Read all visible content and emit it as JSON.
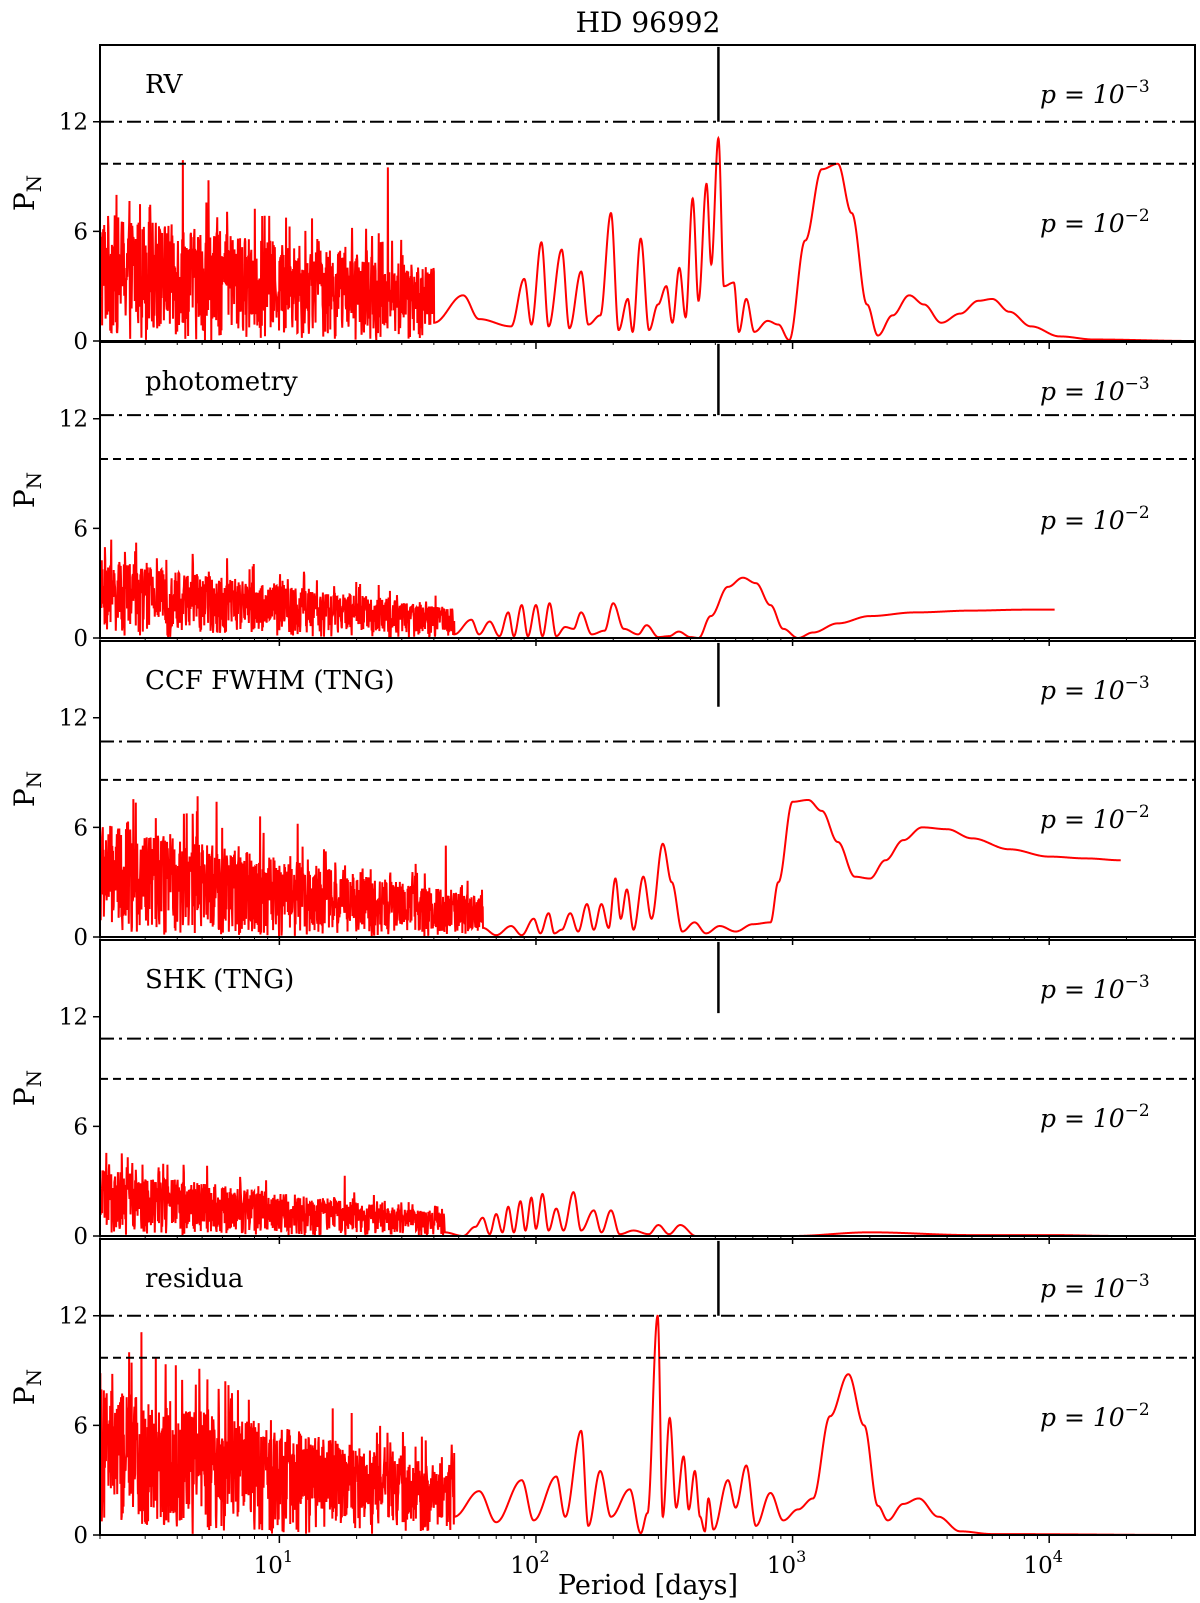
{
  "chart_data": {
    "type": "line",
    "title": "HD 96992",
    "xlabel": "Period [days]",
    "ylabel": "P",
    "ylabel_sub": "N",
    "xscale": "log",
    "xlim": [
      2.0,
      37000
    ],
    "ylim": [
      0,
      16.2
    ],
    "yticks": [
      0,
      6,
      12
    ],
    "xticks": [
      {
        "value": 10,
        "base": "10",
        "exp": "1"
      },
      {
        "value": 100,
        "base": "10",
        "exp": "2"
      },
      {
        "value": 1000,
        "base": "10",
        "exp": "3"
      },
      {
        "value": 10000,
        "base": "10",
        "exp": "4"
      }
    ],
    "significance_labels": {
      "p3": "p = 10",
      "p3_exp": "−3",
      "p2": "p = 10",
      "p2_exp": "−2"
    },
    "line_color": "#ff0000",
    "marker_period": 514,
    "panels": [
      {
        "label": "RV",
        "fap_001": 9.7,
        "fap_0001": 12.0,
        "marker_range": [
          12.0,
          16.1
        ],
        "noise": {
          "to": 40,
          "env_start": 5.2,
          "env_end": 3.0,
          "spikes": [
            [
              4.2,
              9.9
            ],
            [
              5.3,
              8.8
            ],
            [
              26.5,
              9.5
            ]
          ]
        },
        "curve": [
          [
            40,
            1.0
          ],
          [
            52,
            2.5
          ],
          [
            60,
            1.2
          ],
          [
            80,
            0.8
          ],
          [
            90,
            3.4
          ],
          [
            96,
            0.9
          ],
          [
            105,
            5.4
          ],
          [
            112,
            0.8
          ],
          [
            126,
            5.0
          ],
          [
            135,
            0.7
          ],
          [
            150,
            3.8
          ],
          [
            160,
            0.9
          ],
          [
            178,
            1.4
          ],
          [
            196,
            7.0
          ],
          [
            210,
            0.6
          ],
          [
            228,
            2.3
          ],
          [
            238,
            0.5
          ],
          [
            256,
            5.6
          ],
          [
            276,
            0.6
          ],
          [
            299,
            2.0
          ],
          [
            322,
            3.0
          ],
          [
            340,
            1.0
          ],
          [
            362,
            4.0
          ],
          [
            383,
            1.3
          ],
          [
            408,
            7.8
          ],
          [
            430,
            2.2
          ],
          [
            462,
            8.6
          ],
          [
            482,
            4.2
          ],
          [
            514,
            11.1
          ],
          [
            540,
            3.0
          ],
          [
            590,
            3.2
          ],
          [
            618,
            0.5
          ],
          [
            660,
            2.3
          ],
          [
            710,
            0.5
          ],
          [
            800,
            1.1
          ],
          [
            880,
            0.9
          ],
          [
            970,
            0.05
          ],
          [
            1120,
            5.5
          ],
          [
            1300,
            9.4
          ],
          [
            1500,
            9.7
          ],
          [
            1700,
            7.0
          ],
          [
            1950,
            2.0
          ],
          [
            2150,
            0.3
          ],
          [
            2450,
            1.4
          ],
          [
            2850,
            2.5
          ],
          [
            3250,
            2.0
          ],
          [
            3800,
            1.0
          ],
          [
            4500,
            1.5
          ],
          [
            5300,
            2.2
          ],
          [
            6000,
            2.3
          ],
          [
            7000,
            1.6
          ],
          [
            8500,
            0.8
          ],
          [
            11000,
            0.25
          ],
          [
            15000,
            0.08
          ],
          [
            37000,
            0.0
          ]
        ]
      },
      {
        "label": "photometry",
        "fap_001": 9.8,
        "fap_0001": 12.2,
        "marker_range": [
          12.2,
          16.1
        ],
        "noise": {
          "to": 48,
          "env_start": 3.2,
          "env_end": 1.2,
          "spikes": [
            [
              4.6,
              4.6
            ]
          ]
        },
        "curve": [
          [
            48,
            0.2
          ],
          [
            56,
            1.0
          ],
          [
            60,
            0.2
          ],
          [
            66,
            0.9
          ],
          [
            72,
            0.1
          ],
          [
            78,
            1.4
          ],
          [
            82,
            0.1
          ],
          [
            88,
            1.8
          ],
          [
            93,
            0.1
          ],
          [
            100,
            1.8
          ],
          [
            106,
            0.1
          ],
          [
            113,
            1.9
          ],
          [
            120,
            0.1
          ],
          [
            130,
            0.6
          ],
          [
            140,
            0.5
          ],
          [
            150,
            1.4
          ],
          [
            165,
            0.2
          ],
          [
            185,
            0.4
          ],
          [
            200,
            1.9
          ],
          [
            220,
            0.5
          ],
          [
            250,
            0.2
          ],
          [
            270,
            0.7
          ],
          [
            300,
            0.05
          ],
          [
            330,
            0.1
          ],
          [
            360,
            0.35
          ],
          [
            400,
            0.05
          ],
          [
            430,
            0.0
          ],
          [
            480,
            1.2
          ],
          [
            560,
            2.8
          ],
          [
            640,
            3.3
          ],
          [
            720,
            3.0
          ],
          [
            820,
            1.8
          ],
          [
            920,
            0.5
          ],
          [
            1050,
            0.0
          ],
          [
            1200,
            0.3
          ],
          [
            1500,
            0.8
          ],
          [
            2000,
            1.2
          ],
          [
            3000,
            1.4
          ],
          [
            5000,
            1.5
          ],
          [
            8000,
            1.55
          ],
          [
            10500,
            1.55
          ]
        ]
      },
      {
        "label": "CCF FWHM (TNG)",
        "fap_001": 8.6,
        "fap_0001": 10.7,
        "marker_range": [
          12.6,
          16.1
        ],
        "noise": {
          "to": 62,
          "env_start": 4.6,
          "env_end": 1.6,
          "spikes": [
            [
              4.8,
              7.7
            ],
            [
              5.7,
              7.4
            ],
            [
              8.4,
              6.6
            ],
            [
              11.8,
              6.2
            ],
            [
              34.0,
              4.0
            ],
            [
              44.5,
              5.0
            ]
          ]
        },
        "curve": [
          [
            62,
            0.5
          ],
          [
            70,
            0.1
          ],
          [
            80,
            0.6
          ],
          [
            88,
            0.1
          ],
          [
            98,
            1.0
          ],
          [
            104,
            0.2
          ],
          [
            112,
            1.3
          ],
          [
            118,
            0.2
          ],
          [
            126,
            0.4
          ],
          [
            136,
            1.3
          ],
          [
            146,
            0.3
          ],
          [
            158,
            1.8
          ],
          [
            168,
            0.4
          ],
          [
            180,
            1.8
          ],
          [
            192,
            0.5
          ],
          [
            204,
            3.2
          ],
          [
            214,
            1.0
          ],
          [
            226,
            2.6
          ],
          [
            240,
            0.4
          ],
          [
            262,
            3.3
          ],
          [
            282,
            1.0
          ],
          [
            312,
            5.1
          ],
          [
            338,
            3.0
          ],
          [
            372,
            0.3
          ],
          [
            415,
            0.8
          ],
          [
            460,
            0.2
          ],
          [
            520,
            0.6
          ],
          [
            600,
            0.3
          ],
          [
            700,
            0.7
          ],
          [
            820,
            0.8
          ],
          [
            880,
            3.0
          ],
          [
            1000,
            7.4
          ],
          [
            1150,
            7.5
          ],
          [
            1300,
            6.9
          ],
          [
            1500,
            5.2
          ],
          [
            1750,
            3.3
          ],
          [
            2000,
            3.2
          ],
          [
            2300,
            4.2
          ],
          [
            2700,
            5.3
          ],
          [
            3200,
            6.0
          ],
          [
            4000,
            5.9
          ],
          [
            5000,
            5.4
          ],
          [
            7000,
            4.8
          ],
          [
            10000,
            4.4
          ],
          [
            14000,
            4.3
          ],
          [
            19000,
            4.2
          ]
        ]
      },
      {
        "label": "SHK (TNG)",
        "fap_001": 8.6,
        "fap_0001": 10.8,
        "marker_range": [
          12.2,
          16.1
        ],
        "noise": {
          "to": 44,
          "env_start": 2.7,
          "env_end": 0.9,
          "spikes": [
            [
              3.0,
              3.1
            ],
            [
              18.0,
              3.3
            ]
          ]
        },
        "curve": [
          [
            44,
            0.2
          ],
          [
            52,
            0.0
          ],
          [
            58,
            0.5
          ],
          [
            62,
            1.0
          ],
          [
            66,
            0.1
          ],
          [
            70,
            1.2
          ],
          [
            74,
            0.2
          ],
          [
            78,
            1.6
          ],
          [
            82,
            0.2
          ],
          [
            87,
            1.9
          ],
          [
            91,
            0.3
          ],
          [
            96,
            2.1
          ],
          [
            100,
            0.4
          ],
          [
            106,
            2.3
          ],
          [
            112,
            0.3
          ],
          [
            120,
            1.5
          ],
          [
            128,
            0.3
          ],
          [
            140,
            2.4
          ],
          [
            150,
            0.3
          ],
          [
            168,
            1.4
          ],
          [
            180,
            0.2
          ],
          [
            196,
            1.4
          ],
          [
            212,
            0.1
          ],
          [
            240,
            0.3
          ],
          [
            275,
            0.1
          ],
          [
            300,
            0.6
          ],
          [
            330,
            0.1
          ],
          [
            365,
            0.6
          ],
          [
            420,
            0.0
          ],
          [
            1000,
            0.0
          ],
          [
            2000,
            0.2
          ],
          [
            5000,
            0.05
          ],
          [
            10000,
            0.05
          ],
          [
            19000,
            0.0
          ]
        ]
      },
      {
        "label": "residua",
        "fap_001": 9.7,
        "fap_0001": 12.0,
        "marker_range": [
          12.0,
          16.1
        ],
        "noise": {
          "to": 48,
          "env_start": 6.0,
          "env_end": 2.8,
          "spikes": [
            [
              2.6,
              10.0
            ],
            [
              2.9,
              11.1
            ],
            [
              5.8,
              8.0
            ],
            [
              7.6,
              7.4
            ],
            [
              24.0,
              5.6
            ]
          ]
        },
        "curve": [
          [
            48,
            1.0
          ],
          [
            60,
            2.4
          ],
          [
            70,
            0.7
          ],
          [
            88,
            3.0
          ],
          [
            98,
            0.8
          ],
          [
            120,
            3.2
          ],
          [
            130,
            1.0
          ],
          [
            150,
            5.7
          ],
          [
            160,
            0.5
          ],
          [
            178,
            3.5
          ],
          [
            196,
            1.0
          ],
          [
            232,
            2.5
          ],
          [
            256,
            0.1
          ],
          [
            272,
            1.2
          ],
          [
            298,
            12.0
          ],
          [
            312,
            1.0
          ],
          [
            332,
            6.4
          ],
          [
            352,
            1.5
          ],
          [
            376,
            4.3
          ],
          [
            394,
            1.4
          ],
          [
            416,
            3.5
          ],
          [
            436,
            1.0
          ],
          [
            455,
            0.2
          ],
          [
            470,
            2.0
          ],
          [
            492,
            0.3
          ],
          [
            560,
            3.0
          ],
          [
            600,
            1.5
          ],
          [
            660,
            3.8
          ],
          [
            720,
            0.5
          ],
          [
            820,
            2.3
          ],
          [
            920,
            0.8
          ],
          [
            1050,
            1.4
          ],
          [
            1200,
            2.0
          ],
          [
            1400,
            6.5
          ],
          [
            1650,
            8.8
          ],
          [
            1900,
            6.0
          ],
          [
            2150,
            1.6
          ],
          [
            2350,
            0.8
          ],
          [
            2700,
            1.7
          ],
          [
            3100,
            2.0
          ],
          [
            3700,
            1.0
          ],
          [
            4500,
            0.2
          ],
          [
            6000,
            0.05
          ],
          [
            37000,
            0.0
          ]
        ]
      }
    ]
  }
}
